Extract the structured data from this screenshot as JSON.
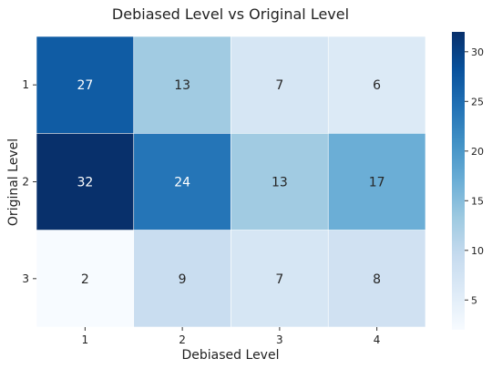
{
  "chart_data": {
    "type": "heatmap",
    "title": "Debiased Level vs Original Level",
    "xlabel": "Debiased Level",
    "ylabel": "Original Level",
    "x_categories": [
      "1",
      "2",
      "3",
      "4"
    ],
    "y_categories": [
      "1",
      "2",
      "3"
    ],
    "values": [
      [
        27,
        13,
        7,
        6
      ],
      [
        32,
        24,
        13,
        17
      ],
      [
        2,
        9,
        7,
        8
      ]
    ],
    "colorbar": {
      "min": 2,
      "max": 32,
      "ticks": [
        "5",
        "10",
        "15",
        "20",
        "25",
        "30"
      ],
      "colormap": "Blues"
    }
  }
}
